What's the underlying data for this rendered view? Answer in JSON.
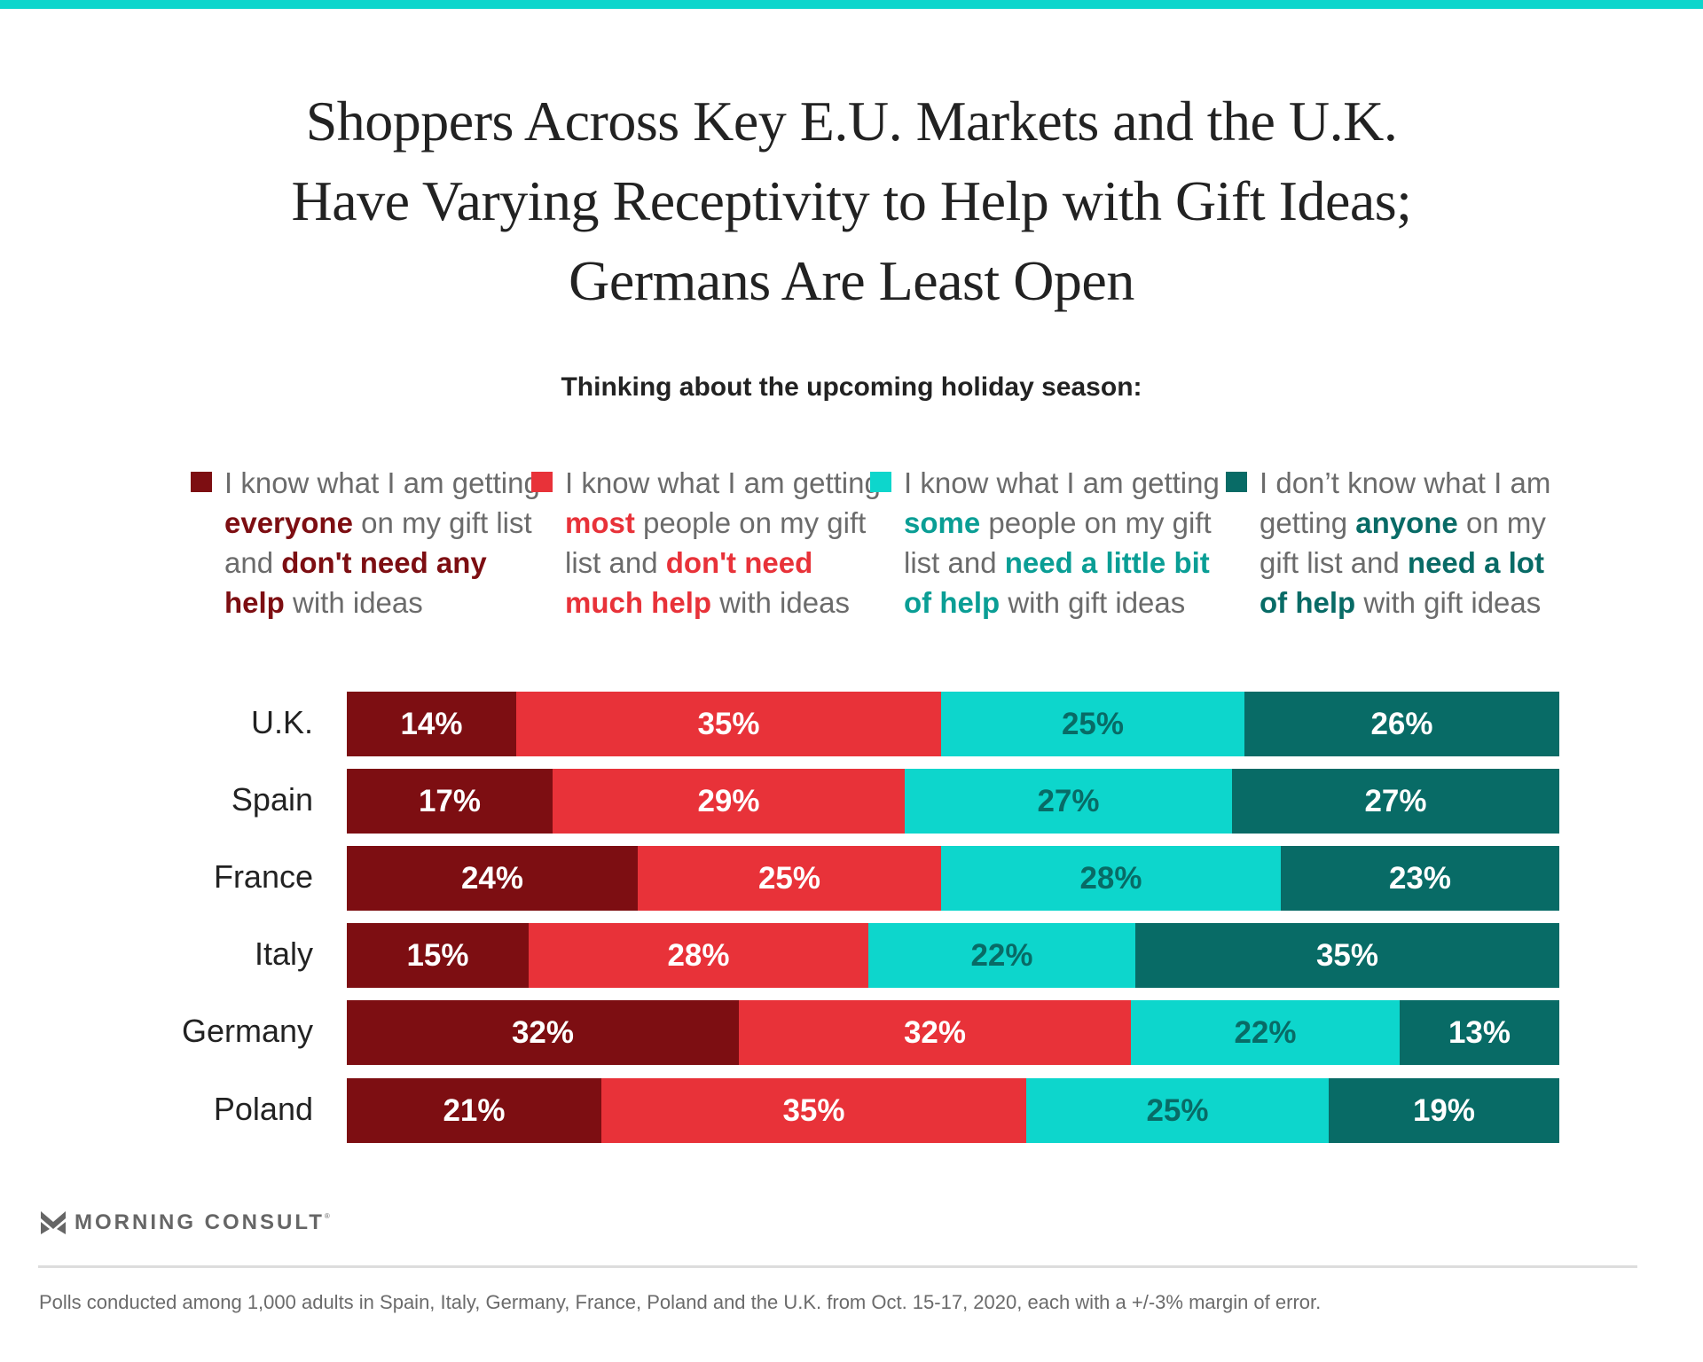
{
  "header": {
    "title_lines": [
      "Shoppers Across Key E.U. Markets and the U.K.",
      "Have Varying Receptivity to Help with Gift Ideas;",
      "Germans Are Least Open"
    ],
    "subtitle": "Thinking about the upcoming holiday season:"
  },
  "colors": {
    "accent_top": "#0dd6cc",
    "everyone": "#7d0e12",
    "most": "#e83239",
    "some": "#0dd6cc",
    "some_text": "#0a9e95",
    "anyone": "#086b66"
  },
  "legend": [
    {
      "parts": [
        {
          "t": "I know what I am getting ",
          "b": false
        },
        {
          "t": "everyone",
          "b": true
        },
        {
          "t": " on my gift list and ",
          "b": false
        },
        {
          "t": "don't need any help",
          "b": true
        },
        {
          "t": " with ideas",
          "b": false
        }
      ]
    },
    {
      "parts": [
        {
          "t": "I know what I am getting ",
          "b": false
        },
        {
          "t": "most",
          "b": true
        },
        {
          "t": " people on my gift list and ",
          "b": false
        },
        {
          "t": "don't need much help",
          "b": true
        },
        {
          "t": " with ideas",
          "b": false
        }
      ]
    },
    {
      "parts": [
        {
          "t": "I know what I am getting ",
          "b": false
        },
        {
          "t": "some",
          "b": true
        },
        {
          "t": " people on my gift list and ",
          "b": false
        },
        {
          "t": "need a little bit of help",
          "b": true
        },
        {
          "t": " with gift ideas",
          "b": false
        }
      ]
    },
    {
      "parts": [
        {
          "t": "I don’t know what I am getting ",
          "b": false
        },
        {
          "t": "anyone",
          "b": true
        },
        {
          "t": " on my gift list and ",
          "b": false
        },
        {
          "t": "need a lot of help",
          "b": true
        },
        {
          "t": " with gift ideas",
          "b": false
        }
      ]
    }
  ],
  "chart_data": {
    "type": "bar",
    "orientation": "horizontal",
    "stacked": true,
    "title": "Shoppers Across Key E.U. Markets and the U.K. Have Varying Receptivity to Help with Gift Ideas; Germans Are Least Open",
    "subtitle": "Thinking about the upcoming holiday season:",
    "categories": [
      "U.K.",
      "Spain",
      "France",
      "Italy",
      "Germany",
      "Poland"
    ],
    "series": [
      {
        "name": "I know what I am getting everyone on my gift list and don't need any help with ideas",
        "values": [
          14,
          17,
          24,
          15,
          32,
          21
        ]
      },
      {
        "name": "I know what I am getting most people on my gift list and don't need much help with ideas",
        "values": [
          35,
          29,
          25,
          28,
          32,
          35
        ]
      },
      {
        "name": "I know what I am getting some people on my gift list and need a little bit of help with gift ideas",
        "values": [
          25,
          27,
          28,
          22,
          22,
          25
        ]
      },
      {
        "name": "I don’t know what I am getting anyone on my gift list and need a lot of help with gift ideas",
        "values": [
          26,
          27,
          23,
          35,
          13,
          19
        ]
      }
    ],
    "value_suffix": "%",
    "xlabel": "",
    "ylabel": "",
    "legend_position": "top",
    "grid": false
  },
  "footer": {
    "logo_text": "MORNING CONSULT",
    "logo_mark": "®",
    "note": "Polls conducted among 1,000 adults in Spain, Italy, Germany, France, Poland and the U.K. from Oct. 15-17, 2020, each with a +/-3% margin of error."
  }
}
